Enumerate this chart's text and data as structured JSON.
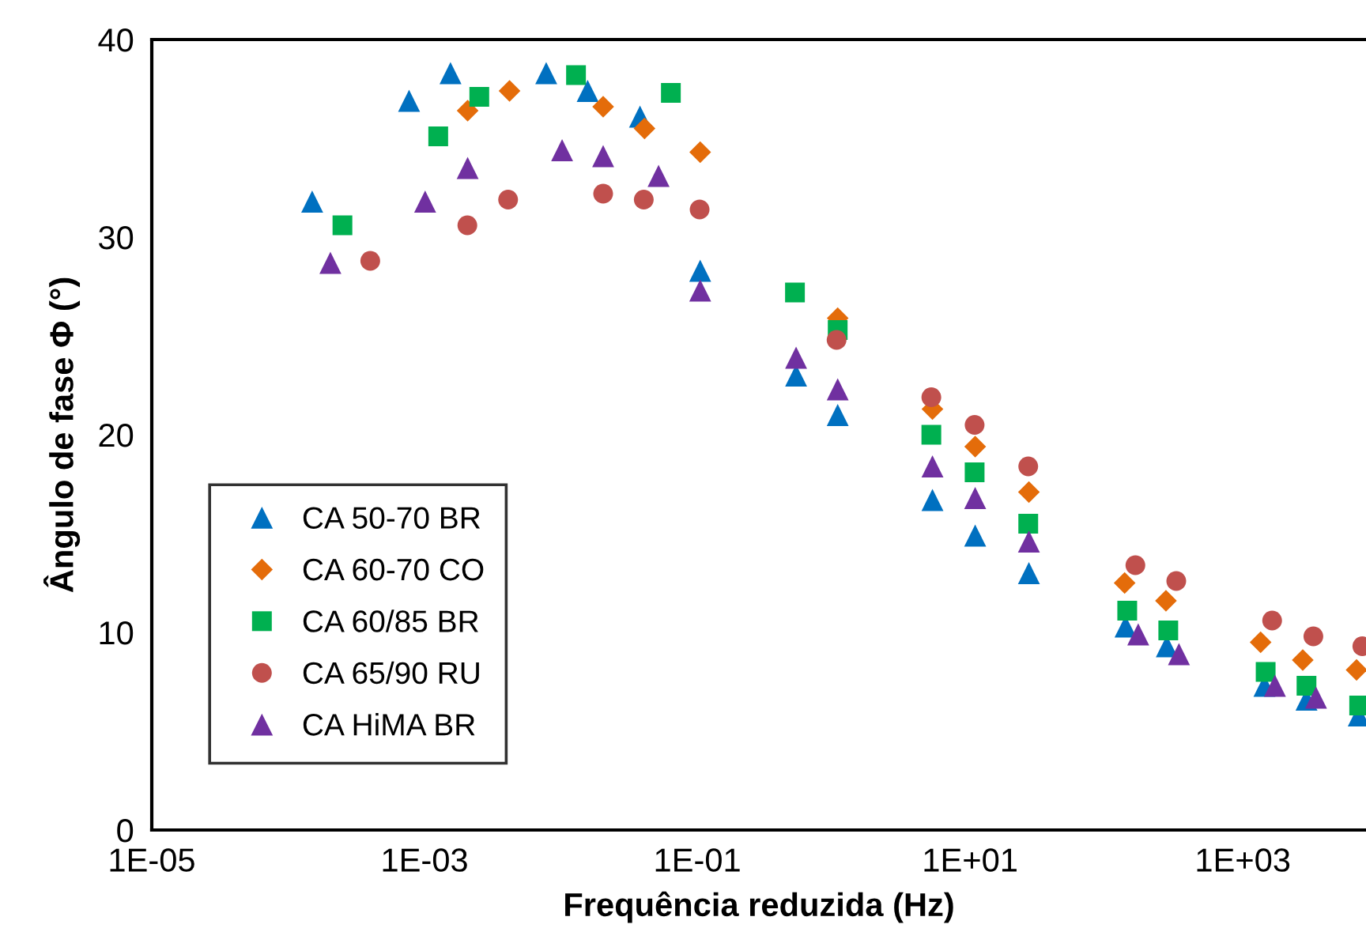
{
  "chart_data": {
    "type": "scatter",
    "xlabel": "Frequência reduzida (Hz)",
    "ylabel": "Ângulo de fase Φ (°)",
    "log": "x",
    "grid": false,
    "legend": "bottom left",
    "xlim": [
      1e-05,
      8000
    ],
    "xticks": [
      {
        "value": 1e-05,
        "label": "1E-05"
      },
      {
        "value": 0.001,
        "label": "1E-03"
      },
      {
        "value": 0.1,
        "label": "1E-01"
      },
      {
        "value": 10,
        "label": "1E+01"
      },
      {
        "value": 1000,
        "label": "1E+03"
      }
    ],
    "ylim": [
      0,
      40
    ],
    "yticks": [
      0,
      10,
      20,
      30,
      40
    ],
    "series": [
      {
        "name": "CA 50-70 BR",
        "color": "#0070c0",
        "marker": "triangle",
        "x": [
          0.00015,
          0.00077,
          0.00155,
          0.0078,
          0.0157,
          0.038,
          0.105,
          0.53,
          1.07,
          5.3,
          10.9,
          27,
          138,
          277,
          1440,
          2930,
          7080
        ],
        "values": [
          31.8,
          36.9,
          38.3,
          38.3,
          37.4,
          36.1,
          28.3,
          23.0,
          21.0,
          16.7,
          14.9,
          13.0,
          10.3,
          9.3,
          7.3,
          6.6,
          5.8
        ]
      },
      {
        "name": "CA 60-70 CO",
        "color": "#e46c0a",
        "marker": "diamond",
        "x": [
          0.00207,
          0.0042,
          0.0204,
          0.041,
          0.105,
          0.53,
          1.07,
          5.3,
          10.9,
          27,
          136,
          273,
          1350,
          2750,
          6820
        ],
        "values": [
          36.4,
          37.4,
          36.6,
          35.5,
          34.3,
          null,
          25.9,
          21.3,
          19.4,
          17.1,
          12.5,
          11.6,
          9.5,
          8.6,
          8.1
        ]
      },
      {
        "name": "CA 60/85 BR",
        "color": "#00b050",
        "marker": "square",
        "x": [
          0.00025,
          0.00126,
          0.00252,
          0.0129,
          0.064,
          0.52,
          1.07,
          5.2,
          10.8,
          26.7,
          142,
          284,
          1470,
          2930,
          7130
        ],
        "values": [
          30.6,
          35.1,
          37.1,
          38.2,
          37.3,
          27.2,
          25.3,
          20.0,
          18.1,
          15.5,
          11.1,
          10.1,
          8.0,
          7.3,
          6.3
        ]
      },
      {
        "name": "CA 65/90 RU",
        "color": "#c0504d",
        "marker": "circle",
        "x": [
          0.0004,
          0.00206,
          0.0041,
          0.0204,
          0.0405,
          0.104,
          1.05,
          5.2,
          10.8,
          26.7,
          163,
          325,
          1640,
          3290,
          7520
        ],
        "values": [
          28.8,
          30.6,
          31.9,
          32.2,
          31.9,
          31.4,
          24.8,
          21.9,
          20.5,
          18.4,
          13.4,
          12.6,
          10.6,
          9.8,
          9.3
        ]
      },
      {
        "name": "CA HiMA BR",
        "color": "#7030a0",
        "marker": "triangle",
        "x": [
          0.000204,
          0.00101,
          0.00207,
          0.0102,
          0.0204,
          0.052,
          0.105,
          0.53,
          1.07,
          5.3,
          10.9,
          27,
          171,
          340,
          1720,
          3440
        ],
        "values": [
          28.7,
          31.8,
          33.5,
          34.4,
          34.1,
          33.1,
          27.3,
          23.9,
          22.3,
          18.4,
          16.8,
          14.6,
          9.9,
          8.9,
          7.3,
          6.7
        ]
      }
    ]
  }
}
